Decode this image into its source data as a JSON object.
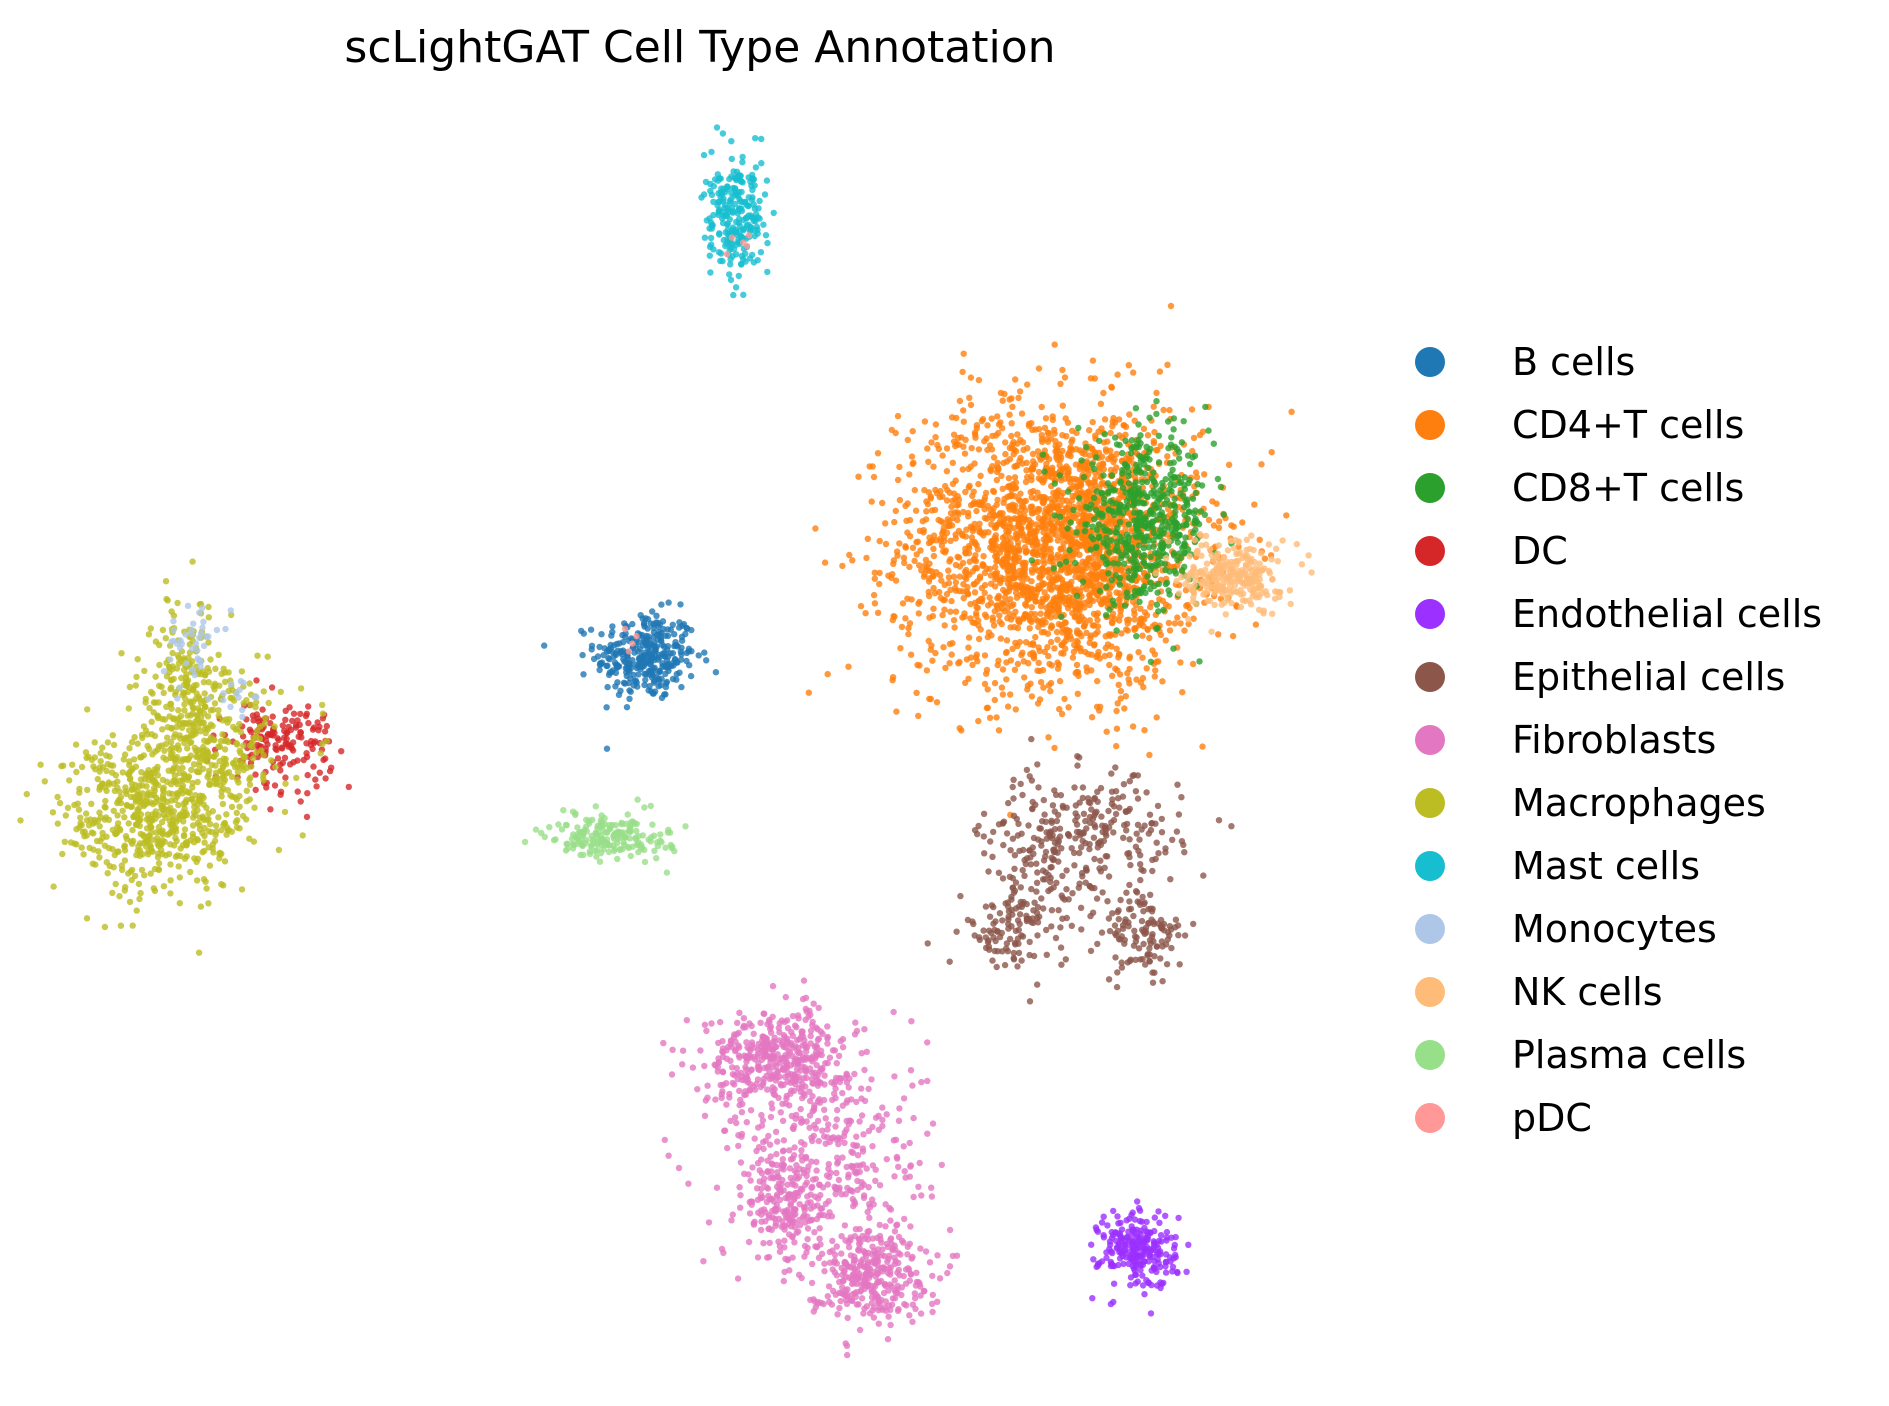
{
  "chart_data": {
    "type": "scatter",
    "title": "scLightGAT Cell Type Annotation",
    "xlabel": "",
    "ylabel": "",
    "axes_visible": false,
    "grid": false,
    "legend_position": "right",
    "series": [
      {
        "name": "B cells",
        "color": "#1f77b4",
        "clusters": [
          {
            "cx": 0.3,
            "cy": 5.35,
            "sx": 0.21,
            "sy": 0.19,
            "n": 320
          }
        ]
      },
      {
        "name": "CD4+T cells",
        "color": "#ff7f0e",
        "clusters": [
          {
            "cx": 3.65,
            "cy": 6.3,
            "sx": 0.62,
            "sy": 0.6,
            "n": 1900
          },
          {
            "cx": 4.05,
            "cy": 6.25,
            "sx": 0.45,
            "sy": 0.55,
            "n": 500
          }
        ]
      },
      {
        "name": "CD8+T cells",
        "color": "#2ca02c",
        "clusters": [
          {
            "cx": 4.45,
            "cy": 6.5,
            "sx": 0.28,
            "sy": 0.35,
            "n": 520
          }
        ]
      },
      {
        "name": "DC",
        "color": "#d62728",
        "clusters": [
          {
            "cx": -2.75,
            "cy": 4.6,
            "sx": 0.22,
            "sy": 0.18,
            "n": 170
          }
        ]
      },
      {
        "name": "Endothelial cells",
        "color": "#9b30ff",
        "clusters": [
          {
            "cx": 4.4,
            "cy": 0.25,
            "sx": 0.16,
            "sy": 0.17,
            "n": 240
          }
        ]
      },
      {
        "name": "Epithelial cells",
        "color": "#8c564b",
        "clusters": [
          {
            "cx": 3.55,
            "cy": 3.5,
            "sx": 0.25,
            "sy": 0.42,
            "n": 170
          },
          {
            "cx": 4.1,
            "cy": 3.8,
            "sx": 0.33,
            "sy": 0.25,
            "n": 190
          },
          {
            "cx": 4.45,
            "cy": 2.95,
            "sx": 0.17,
            "sy": 0.2,
            "n": 120
          },
          {
            "cx": 3.3,
            "cy": 3.0,
            "sx": 0.18,
            "sy": 0.14,
            "n": 70
          }
        ]
      },
      {
        "name": "Fibroblasts",
        "color": "#e377c2",
        "clusters": [
          {
            "cx": 1.4,
            "cy": 1.9,
            "sx": 0.3,
            "sy": 0.2,
            "n": 420
          },
          {
            "cx": 1.8,
            "cy": 1.05,
            "sx": 0.42,
            "sy": 0.45,
            "n": 360
          },
          {
            "cx": 1.45,
            "cy": 0.6,
            "sx": 0.15,
            "sy": 0.22,
            "n": 160
          },
          {
            "cx": 2.15,
            "cy": 0.05,
            "sx": 0.25,
            "sy": 0.2,
            "n": 330
          }
        ]
      },
      {
        "name": "Macrophages",
        "color": "#bcbd22",
        "clusters": [
          {
            "cx": -3.8,
            "cy": 4.0,
            "sx": 0.38,
            "sy": 0.35,
            "n": 580
          },
          {
            "cx": -3.35,
            "cy": 4.65,
            "sx": 0.3,
            "sy": 0.4,
            "n": 330
          },
          {
            "cx": -3.55,
            "cy": 5.25,
            "sx": 0.12,
            "sy": 0.3,
            "n": 110
          }
        ]
      },
      {
        "name": "Mast cells",
        "color": "#17becf",
        "clusters": [
          {
            "cx": 1.05,
            "cy": 9.1,
            "sx": 0.13,
            "sy": 0.25,
            "n": 240
          }
        ]
      },
      {
        "name": "Monocytes",
        "color": "#aec7e8",
        "clusters": [
          {
            "cx": -3.5,
            "cy": 5.45,
            "sx": 0.12,
            "sy": 0.15,
            "n": 40
          },
          {
            "cx": -3.15,
            "cy": 5.0,
            "sx": 0.1,
            "sy": 0.1,
            "n": 14
          }
        ]
      },
      {
        "name": "NK cells",
        "color": "#ffbb78",
        "clusters": [
          {
            "cx": 5.2,
            "cy": 6.05,
            "sx": 0.2,
            "sy": 0.15,
            "n": 260
          }
        ]
      },
      {
        "name": "Plasma cells",
        "color": "#98df8a",
        "clusters": [
          {
            "cx": 0.0,
            "cy": 3.8,
            "sx": 0.25,
            "sy": 0.1,
            "n": 190
          }
        ]
      },
      {
        "name": "pDC",
        "color": "#ff9896",
        "clusters": [
          {
            "cx": 1.1,
            "cy": 8.95,
            "sx": 0.08,
            "sy": 0.08,
            "n": 5
          },
          {
            "cx": 0.15,
            "cy": 5.45,
            "sx": 0.08,
            "sy": 0.08,
            "n": 4
          }
        ]
      }
    ],
    "xlim": [
      -4.5,
      6.0
    ],
    "ylim": [
      -0.7,
      10.3
    ]
  }
}
